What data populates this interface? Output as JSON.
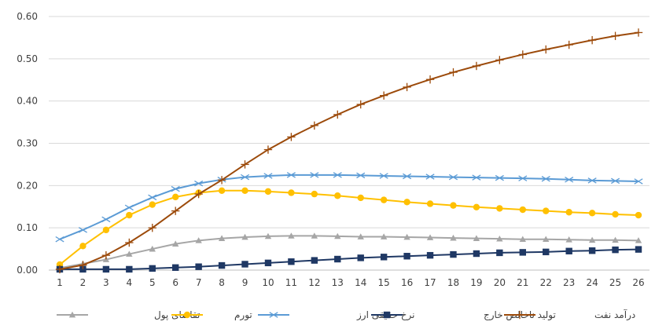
{
  "chart_data": {
    "type": "line",
    "title": "",
    "xlabel": "",
    "ylabel": "",
    "x": [
      1,
      2,
      3,
      4,
      5,
      6,
      7,
      8,
      9,
      10,
      11,
      12,
      13,
      14,
      15,
      16,
      17,
      18,
      19,
      20,
      21,
      22,
      23,
      24,
      25,
      26
    ],
    "ylim": [
      0,
      0.6
    ],
    "yticks": [
      "0.00",
      "0.10",
      "0.20",
      "0.30",
      "0.40",
      "0.50",
      "0.60"
    ],
    "grid": true,
    "legend_position": "bottom",
    "series": [
      {
        "name": "تقاضای پول",
        "color": "#a6a6a6",
        "marker": "triangle",
        "values": [
          0.005,
          0.015,
          0.025,
          0.038,
          0.05,
          0.062,
          0.07,
          0.075,
          0.078,
          0.08,
          0.081,
          0.081,
          0.08,
          0.079,
          0.079,
          0.078,
          0.077,
          0.076,
          0.075,
          0.074,
          0.073,
          0.073,
          0.072,
          0.071,
          0.071,
          0.07
        ]
      },
      {
        "name": "تورم",
        "color": "#ffc000",
        "marker": "circle",
        "values": [
          0.013,
          0.057,
          0.095,
          0.13,
          0.155,
          0.173,
          0.183,
          0.188,
          0.188,
          0.186,
          0.183,
          0.18,
          0.176,
          0.171,
          0.166,
          0.161,
          0.157,
          0.153,
          0.149,
          0.146,
          0.143,
          0.14,
          0.137,
          0.135,
          0.132,
          0.13
        ]
      },
      {
        "name": "نرخ حقیقی ارز",
        "color": "#5b9bd5",
        "marker": "x",
        "values": [
          0.073,
          0.095,
          0.12,
          0.148,
          0.172,
          0.192,
          0.205,
          0.214,
          0.22,
          0.223,
          0.225,
          0.225,
          0.225,
          0.224,
          0.223,
          0.222,
          0.221,
          0.22,
          0.219,
          0.218,
          0.217,
          0.216,
          0.214,
          0.212,
          0.211,
          0.21
        ]
      },
      {
        "name": "تولید ناخالص خارج",
        "color": "#1f3864",
        "marker": "square",
        "values": [
          0.002,
          0.002,
          0.002,
          0.002,
          0.004,
          0.006,
          0.008,
          0.011,
          0.014,
          0.017,
          0.02,
          0.023,
          0.026,
          0.029,
          0.031,
          0.033,
          0.035,
          0.037,
          0.039,
          0.041,
          0.042,
          0.043,
          0.045,
          0.046,
          0.048,
          0.049
        ]
      },
      {
        "name": "درآمد نفت",
        "color": "#9c4a0a",
        "marker": "plus",
        "values": [
          0.002,
          0.012,
          0.035,
          0.065,
          0.1,
          0.14,
          0.18,
          0.213,
          0.25,
          0.285,
          0.315,
          0.342,
          0.368,
          0.392,
          0.413,
          0.433,
          0.451,
          0.468,
          0.483,
          0.497,
          0.51,
          0.522,
          0.533,
          0.544,
          0.554,
          0.562
        ]
      }
    ]
  }
}
